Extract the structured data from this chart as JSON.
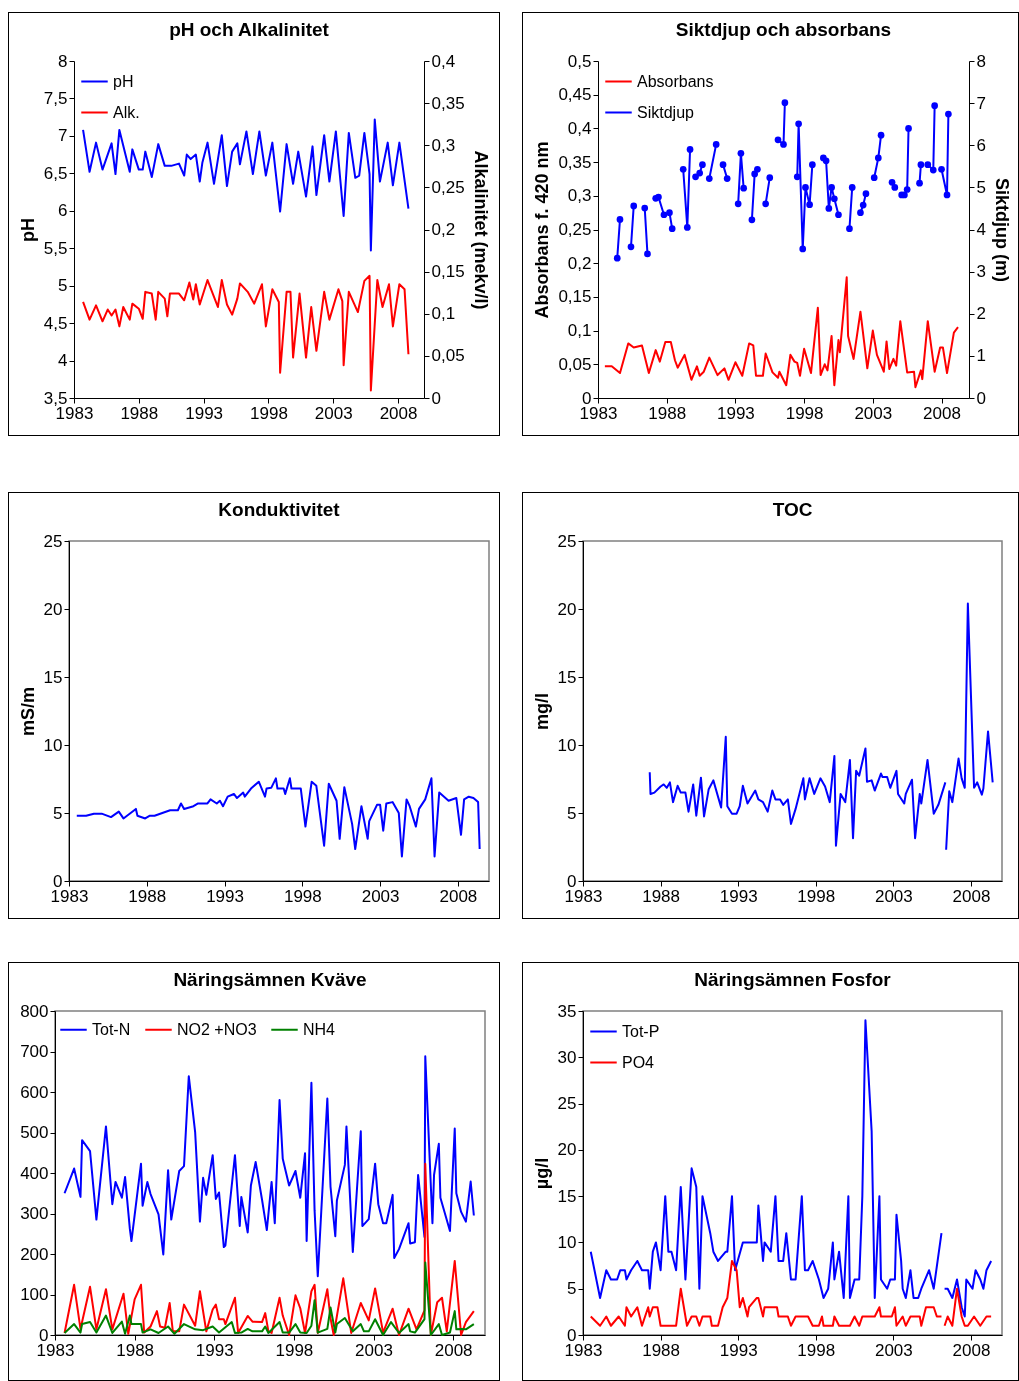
{
  "chart_data": [
    {
      "type": "line",
      "title": "pH och Alkalinitet",
      "ylabel": "pH",
      "y2label": "Alkalinitet (mekv/l)",
      "legend": "top left",
      "xlim": [
        1983,
        2010
      ],
      "xticks": [
        1983,
        1988,
        1993,
        1998,
        2003,
        2008
      ],
      "ylim": [
        3.5,
        8
      ],
      "yticks": [
        {
          "value": 3.5,
          "label": "3,5"
        },
        4,
        {
          "value": 4.5,
          "label": "4,5"
        },
        5,
        {
          "value": 5.5,
          "label": "5,5"
        },
        6,
        {
          "value": 6.5,
          "label": "6,5"
        },
        7,
        {
          "value": 7.5,
          "label": "7,5"
        },
        8
      ],
      "y2lim": [
        0,
        0.4
      ],
      "y2ticks": [
        0,
        {
          "value": 0.05,
          "label": "0,05"
        },
        {
          "value": 0.1,
          "label": "0,1"
        },
        {
          "value": 0.15,
          "label": "0,15"
        },
        {
          "value": 0.2,
          "label": "0,2"
        },
        {
          "value": 0.25,
          "label": "0,25"
        },
        {
          "value": 0.3,
          "label": "0,3"
        },
        {
          "value": 0.35,
          "label": "0,35"
        },
        {
          "value": 0.4,
          "label": "0,4"
        }
      ],
      "series": [
        {
          "name": "pH",
          "color": "#0000ff",
          "x": [
            1983.7,
            1984.2,
            1984.7,
            1985.2,
            1985.9,
            1986.2,
            1986.5,
            1987.3,
            1987.5,
            1988.0,
            1988.3,
            1988.5,
            1989.0,
            1989.5,
            1990.0,
            1990.5,
            1991.1,
            1991.5,
            1991.7,
            1992.0,
            1992.4,
            1992.7,
            1992.9,
            1993.3,
            1993.8,
            1994.4,
            1994.8,
            1995.2,
            1995.6,
            1995.8,
            1996.3,
            1996.8,
            1997.3,
            1997.8,
            1998.3,
            1998.9,
            1999.4,
            1999.9,
            2000.3,
            2000.9,
            2001.4,
            2001.7,
            2002.3,
            2002.7,
            2003.2,
            2003.8,
            2004.2,
            2004.7,
            2005.0,
            2005.4,
            2005.8,
            2005.9,
            2006.2,
            2006.6,
            2007.2,
            2007.6,
            2008.1,
            2008.8
          ],
          "values": [
            7.08,
            6.52,
            6.91,
            6.55,
            6.9,
            6.49,
            7.08,
            6.52,
            6.82,
            6.55,
            6.55,
            6.79,
            6.45,
            6.89,
            6.6,
            6.6,
            6.63,
            6.47,
            6.75,
            6.69,
            6.75,
            6.39,
            6.64,
            6.91,
            6.36,
            7.01,
            6.33,
            6.79,
            6.9,
            6.62,
            7.06,
            6.49,
            7.06,
            6.47,
            6.91,
            5.99,
            6.89,
            6.36,
            6.79,
            6.19,
            6.86,
            6.21,
            7.01,
            6.39,
            7.06,
            5.93,
            7.04,
            6.44,
            6.47,
            7.04,
            6.49,
            5.47,
            7.22,
            6.39,
            6.91,
            6.34,
            6.91,
            6.03
          ]
        },
        {
          "name": "Alk.",
          "color": "#ff0000",
          "axis": "y2",
          "x": [
            1983.7,
            1984.2,
            1984.7,
            1985.2,
            1985.6,
            1985.9,
            1986.2,
            1986.5,
            1986.8,
            1987.3,
            1987.5,
            1988.0,
            1988.3,
            1988.5,
            1989.0,
            1989.3,
            1989.5,
            1990.0,
            1990.2,
            1990.4,
            1991.1,
            1991.5,
            1991.9,
            1992.2,
            1992.4,
            1992.7,
            1993.3,
            1993.8,
            1994.1,
            1994.4,
            1994.8,
            1995.2,
            1995.6,
            1995.8,
            1996.4,
            1996.9,
            1997.5,
            1997.8,
            1998.3,
            1998.8,
            1998.9,
            1999.4,
            1999.7,
            1999.9,
            2000.4,
            2000.9,
            2001.3,
            2001.7,
            2002.3,
            2002.7,
            2003.4,
            2003.7,
            2003.8,
            2004.2,
            2004.9,
            2005.4,
            2005.8,
            2005.9,
            2006.4,
            2006.8,
            2007.3,
            2007.6,
            2008.1,
            2008.5,
            2008.8
          ],
          "values": [
            0.114,
            0.093,
            0.11,
            0.091,
            0.105,
            0.098,
            0.105,
            0.085,
            0.108,
            0.093,
            0.112,
            0.106,
            0.094,
            0.126,
            0.124,
            0.093,
            0.126,
            0.118,
            0.097,
            0.124,
            0.124,
            0.116,
            0.137,
            0.117,
            0.135,
            0.111,
            0.14,
            0.12,
            0.108,
            0.14,
            0.111,
            0.099,
            0.118,
            0.136,
            0.126,
            0.112,
            0.135,
            0.085,
            0.129,
            0.114,
            0.03,
            0.126,
            0.126,
            0.048,
            0.124,
            0.048,
            0.108,
            0.056,
            0.126,
            0.093,
            0.129,
            0.115,
            0.039,
            0.126,
            0.102,
            0.139,
            0.145,
            0.009,
            0.14,
            0.108,
            0.135,
            0.085,
            0.135,
            0.129,
            0.052
          ]
        }
      ]
    },
    {
      "type": "line",
      "title": "Siktdjup och absorbans",
      "ylabel": "Absorbans f. 420 nm",
      "y2label": "Siktdjup (m)",
      "legend": "top left",
      "xlim": [
        1983,
        2010
      ],
      "xticks": [
        1983,
        1988,
        1993,
        1998,
        2003,
        2008
      ],
      "ylim": [
        0,
        0.5
      ],
      "yticks": [
        0,
        {
          "value": 0.05,
          "label": "0,05"
        },
        {
          "value": 0.1,
          "label": "0,1"
        },
        {
          "value": 0.15,
          "label": "0,15"
        },
        {
          "value": 0.2,
          "label": "0,2"
        },
        {
          "value": 0.25,
          "label": "0,25"
        },
        {
          "value": 0.3,
          "label": "0,3"
        },
        {
          "value": 0.35,
          "label": "0,35"
        },
        {
          "value": 0.4,
          "label": "0,4"
        },
        {
          "value": 0.45,
          "label": "0,45"
        },
        {
          "value": 0.5,
          "label": "0,5"
        }
      ],
      "y2lim": [
        0,
        8
      ],
      "y2ticks": [
        0,
        1,
        2,
        3,
        4,
        5,
        6,
        7,
        8
      ],
      "series": [
        {
          "name": "Absorbans",
          "color": "#ff0000",
          "x": [
            1983.5,
            1984.0,
            1984.6,
            1985.2,
            1985.6,
            1986.2,
            1986.7,
            1987.2,
            1987.5,
            1987.9,
            1988.3,
            1988.6,
            1988.8,
            1989.3,
            1989.8,
            1990.2,
            1990.4,
            1990.7,
            1991.1,
            1991.7,
            1992.2,
            1992.5,
            1993.0,
            1993.5,
            1994.0,
            1994.3,
            1994.5,
            1995.0,
            1995.2,
            1995.7,
            1996.1,
            1996.2,
            1996.7,
            1997.0,
            1997.3,
            1997.5,
            1997.7,
            1998.0,
            1998.5,
            1999.0,
            1999.2,
            1999.5,
            1999.7,
            2000.0,
            2000.2,
            2000.5,
            2000.6,
            2001.1,
            2001.2,
            2001.6,
            2002.1,
            2002.6,
            2003.0,
            2003.3,
            2003.8,
            2004.0,
            2004.2,
            2004.5,
            2004.7,
            2005.0,
            2005.5,
            2006.0,
            2006.1,
            2006.5,
            2006.6,
            2007.0,
            2007.5,
            2007.9,
            2008.1,
            2008.4,
            2008.9,
            2009.2
          ],
          "values": [
            0.047,
            0.047,
            0.037,
            0.081,
            0.075,
            0.078,
            0.037,
            0.071,
            0.054,
            0.083,
            0.083,
            0.056,
            0.045,
            0.064,
            0.027,
            0.047,
            0.033,
            0.039,
            0.06,
            0.034,
            0.044,
            0.027,
            0.053,
            0.033,
            0.081,
            0.078,
            0.033,
            0.033,
            0.066,
            0.038,
            0.03,
            0.039,
            0.019,
            0.064,
            0.054,
            0.052,
            0.033,
            0.073,
            0.037,
            0.134,
            0.034,
            0.05,
            0.041,
            0.092,
            0.019,
            0.086,
            0.068,
            0.179,
            0.092,
            0.058,
            0.128,
            0.044,
            0.1,
            0.064,
            0.039,
            0.084,
            0.043,
            0.058,
            0.048,
            0.114,
            0.038,
            0.039,
            0.016,
            0.041,
            0.028,
            0.114,
            0.039,
            0.075,
            0.075,
            0.037,
            0.097,
            0.105
          ]
        },
        {
          "name": "Siktdjup",
          "color": "#0000ff",
          "axis": "y2",
          "marker": "circle",
          "x": [
            1984.4,
            1984.6,
            1985.0,
            1985.4,
            1985.6,
            1986.0,
            1986.4,
            1986.6,
            1986.9,
            1987.2,
            1987.4,
            1987.8,
            1988.0,
            1988.2,
            1988.4,
            1988.8,
            1989.2,
            1989.5,
            1989.7,
            1989.9,
            1990.1,
            1990.4,
            1990.6,
            1990.9,
            1991.1,
            1991.6,
            1991.9,
            1992.1,
            1992.4,
            1992.8,
            1993.2,
            1993.4,
            1993.6,
            1993.9,
            1994.2,
            1994.4,
            1994.6,
            1994.9,
            1995.2,
            1995.5,
            1995.8,
            1996.1,
            1996.5,
            1996.6,
            1997.0,
            1997.5,
            1997.6,
            1997.9,
            1998.1,
            1998.4,
            1998.6,
            1999.0,
            1999.4,
            1999.6,
            1999.8,
            2000.0,
            2000.2,
            2000.5,
            2000.9,
            2001.3,
            2001.5,
            2001.8,
            2002.1,
            2002.3,
            2002.5,
            2002.8,
            2003.1,
            2003.4,
            2003.6,
            2004.0,
            2004.4,
            2004.6,
            2004.9,
            2005.1,
            2005.3,
            2005.5,
            2005.6,
            2006.0,
            2006.4,
            2006.5,
            2006.8,
            2007.0,
            2007.4,
            2007.5,
            2007.8,
            2008.0,
            2008.4,
            2008.5
          ],
          "values": [
            3.32,
            4.24,
            null,
            3.59,
            4.56,
            null,
            4.51,
            3.42,
            null,
            4.74,
            4.77,
            4.35,
            null,
            4.4,
            4.02,
            null,
            5.43,
            4.05,
            5.9,
            null,
            5.25,
            5.34,
            5.54,
            null,
            5.21,
            6.02,
            null,
            5.54,
            5.21,
            null,
            4.61,
            5.81,
            4.98,
            null,
            4.23,
            5.32,
            5.43,
            null,
            4.61,
            5.23,
            null,
            6.13,
            6.02,
            7.01,
            null,
            5.25,
            6.51,
            3.54,
            5.0,
            4.59,
            5.54,
            null,
            5.7,
            5.63,
            4.5,
            5.0,
            4.73,
            4.35,
            null,
            4.02,
            5.0,
            null,
            4.4,
            4.58,
            4.85,
            null,
            5.23,
            5.7,
            6.24,
            null,
            5.12,
            5.0,
            null,
            4.82,
            4.82,
            4.95,
            6.4,
            null,
            5.1,
            5.54,
            null,
            5.54,
            5.41,
            6.94,
            null,
            5.43,
            4.82,
            6.74
          ]
        }
      ]
    },
    {
      "type": "line",
      "title": "Konduktivitet",
      "ylabel": "mS/m",
      "color": "#0000ff",
      "xlim": [
        1983,
        2010
      ],
      "xticks": [
        1983,
        1988,
        1993,
        1998,
        2003,
        2008
      ],
      "ylim": [
        0,
        25
      ],
      "yticks": [
        0,
        5,
        10,
        15,
        20,
        25
      ],
      "x": [
        1983.5,
        1984.1,
        1984.6,
        1985.1,
        1985.7,
        1986.2,
        1986.5,
        1987.3,
        1987.4,
        1987.9,
        1988.2,
        1988.5,
        1989.0,
        1989.5,
        1990.0,
        1990.2,
        1990.4,
        1991.0,
        1991.3,
        1991.9,
        1992.1,
        1992.5,
        1992.7,
        1992.9,
        1993.2,
        1993.6,
        1993.8,
        1994.2,
        1994.3,
        1994.7,
        1995.2,
        1995.6,
        1995.7,
        1996.0,
        1996.3,
        1996.4,
        1996.8,
        1996.9,
        1997.2,
        1997.3,
        1997.9,
        1998.2,
        1998.6,
        1998.9,
        1999.4,
        1999.7,
        2000.2,
        2000.4,
        2000.7,
        2001.2,
        2001.4,
        2001.8,
        2002.2,
        2002.3,
        2002.8,
        2003.0,
        2003.2,
        2003.4,
        2003.8,
        2004.2,
        2004.4,
        2004.7,
        2004.9,
        2005.3,
        2005.5,
        2005.9,
        2006.3,
        2006.5,
        2006.8,
        2007.4,
        2007.9,
        2008.2,
        2008.4,
        2008.7,
        2009.0,
        2009.3,
        2009.4
      ],
      "values": [
        4.8,
        4.8,
        4.95,
        4.95,
        4.7,
        5.1,
        4.6,
        5.3,
        4.8,
        4.6,
        4.8,
        4.8,
        5.0,
        5.2,
        5.2,
        5.7,
        5.3,
        5.5,
        5.7,
        5.7,
        6.0,
        5.7,
        5.9,
        5.5,
        6.2,
        6.4,
        6.1,
        6.5,
        6.2,
        6.8,
        7.3,
        6.2,
        6.8,
        6.85,
        7.55,
        6.8,
        6.8,
        6.4,
        7.55,
        6.8,
        6.8,
        4.0,
        7.3,
        7.0,
        2.6,
        7.15,
        5.9,
        3.1,
        6.9,
        4.2,
        2.35,
        5.5,
        3.1,
        4.4,
        5.6,
        5.6,
        3.7,
        5.7,
        5.8,
        5.0,
        1.8,
        6.0,
        5.5,
        4.0,
        5.3,
        6.0,
        7.55,
        1.8,
        6.5,
        5.9,
        6.1,
        3.4,
        6.0,
        6.2,
        6.1,
        5.8,
        2.35
      ]
    },
    {
      "type": "line",
      "title": "TOC",
      "ylabel": "mg/l",
      "color": "#0000ff",
      "xlim": [
        1983,
        2010
      ],
      "xticks": [
        1983,
        1988,
        1993,
        1998,
        2003,
        2008
      ],
      "ylim": [
        0,
        25
      ],
      "yticks": [
        0,
        5,
        10,
        15,
        20,
        25
      ],
      "x": [
        1987.3,
        1987.35,
        1987.6,
        1988.0,
        1988.2,
        1988.4,
        1988.6,
        1988.8,
        1989.1,
        1989.3,
        1989.6,
        1989.8,
        1990.1,
        1990.3,
        1990.6,
        1990.8,
        1991.1,
        1991.4,
        1991.9,
        1992.2,
        1992.3,
        1992.6,
        1992.9,
        1993.1,
        1993.3,
        1993.6,
        1994.1,
        1994.3,
        1994.6,
        1994.9,
        1995.2,
        1995.4,
        1995.7,
        1995.9,
        1996.2,
        1996.4,
        1996.7,
        1997.2,
        1997.3,
        1997.6,
        1997.9,
        1998.3,
        1998.6,
        1998.9,
        1999.2,
        1999.3,
        1999.6,
        1999.9,
        2000.2,
        2000.4,
        2000.6,
        2000.8,
        2001.2,
        2001.3,
        2001.6,
        2001.8,
        2002.2,
        2002.3,
        2002.6,
        2002.8,
        2003.2,
        2003.3,
        2003.7,
        2003.8,
        2004.2,
        2004.4,
        2004.7,
        2004.8,
        2005.2,
        2005.6,
        2005.9,
        2006.35,
        2006.37,
        2006.4,
        2006.6,
        2006.8,
        2007.2,
        2007.4,
        2007.6,
        2007.8,
        2008.2,
        2008.4,
        2008.7,
        2008.8,
        2009.1,
        2009.4
      ],
      "values": [
        8.0,
        6.4,
        6.5,
        6.95,
        7.1,
        6.85,
        7.25,
        5.8,
        7.0,
        6.5,
        6.5,
        5.1,
        7.1,
        4.8,
        7.6,
        4.75,
        6.75,
        7.4,
        5.4,
        10.6,
        5.5,
        4.95,
        4.95,
        5.5,
        7.0,
        5.7,
        6.65,
        6.0,
        5.8,
        5.1,
        6.65,
        6.0,
        6.0,
        5.6,
        6.0,
        4.2,
        5.3,
        7.55,
        6.0,
        7.55,
        6.4,
        7.55,
        6.95,
        5.8,
        9.2,
        2.6,
        6.4,
        5.8,
        8.9,
        3.15,
        8.1,
        7.75,
        9.75,
        7.3,
        7.4,
        6.65,
        7.9,
        7.65,
        7.65,
        6.85,
        8.1,
        6.4,
        5.7,
        6.4,
        7.45,
        3.15,
        6.4,
        5.7,
        8.9,
        4.95,
        5.6,
        7.25,
        null,
        2.3,
        6.6,
        5.8,
        9.0,
        7.55,
        6.85,
        20.4,
        6.85,
        7.25,
        6.35,
        6.8,
        11.0,
        7.25
      ]
    },
    {
      "type": "line",
      "title": "Näringsämnen Kväve",
      "legend": "top",
      "xlim": [
        1983,
        2010
      ],
      "xticks": [
        1983,
        1988,
        1993,
        1998,
        2003,
        2008
      ],
      "ylim": [
        0,
        800
      ],
      "yticks": [
        0,
        100,
        200,
        300,
        400,
        500,
        600,
        700,
        800
      ],
      "series": [
        {
          "name": "Tot-N",
          "color": "#0000ff",
          "x": [
            1983.6,
            1984.2,
            1984.6,
            1984.7,
            1985.2,
            1985.6,
            1986.2,
            1986.6,
            1986.8,
            1987.2,
            1987.4,
            1987.7,
            1987.8,
            1988.4,
            1988.5,
            1988.8,
            1989.0,
            1989.5,
            1989.8,
            1990.1,
            1990.3,
            1990.8,
            1991.1,
            1991.4,
            1991.8,
            1992.1,
            1992.3,
            1992.5,
            1992.9,
            1993.1,
            1993.3,
            1993.6,
            1993.7,
            1994.3,
            1994.6,
            1994.7,
            1995.1,
            1995.3,
            1995.6,
            1996.0,
            1996.3,
            1996.6,
            1996.8,
            1997.1,
            1997.3,
            1997.7,
            1998.1,
            1998.4,
            1998.7,
            1998.8,
            1999.1,
            1999.3,
            1999.5,
            2000.1,
            2000.3,
            2000.6,
            2000.7,
            2001.2,
            2001.3,
            2001.7,
            2002.2,
            2002.3,
            2002.7,
            2003.1,
            2003.3,
            2003.6,
            2003.8,
            2004.2,
            2004.3,
            2004.6,
            2005.2,
            2005.3,
            2005.6,
            2005.8,
            2006.2,
            2006.25,
            2006.7,
            2006.8,
            2007.1,
            2007.2,
            2007.8,
            2008.1,
            2008.2,
            2008.5,
            2008.8,
            2009.1,
            2009.3
          ],
          "values": [
            350,
            411,
            341,
            481,
            454,
            285,
            515,
            323,
            378,
            339,
            390,
            262,
            232,
            423,
            319,
            378,
            348,
            298,
            199,
            407,
            285,
            405,
            417,
            639,
            501,
            280,
            388,
            346,
            444,
            336,
            352,
            217,
            221,
            444,
            269,
            341,
            253,
            369,
            427,
            334,
            259,
            378,
            276,
            580,
            435,
            369,
            405,
            339,
            449,
            232,
            623,
            307,
            145,
            584,
            366,
            244,
            332,
            420,
            515,
            205,
            503,
            269,
            286,
            423,
            323,
            276,
            276,
            346,
            190,
            212,
            276,
            226,
            229,
            395,
            242,
            688,
            276,
            395,
            472,
            339,
            257,
            510,
            350,
            304,
            280,
            379,
            295
          ]
        },
        {
          "name": "NO2 +NO3",
          "color": "#ff0000",
          "x": [
            1983.6,
            1984.2,
            1984.6,
            1985.2,
            1985.6,
            1986.2,
            1986.6,
            1987.3,
            1987.6,
            1988.0,
            1988.4,
            1988.6,
            1989.0,
            1989.4,
            1989.6,
            1989.9,
            1990.2,
            1990.4,
            1990.8,
            1991.1,
            1991.8,
            1992.1,
            1992.5,
            1992.9,
            1993.1,
            1993.3,
            1993.6,
            1993.7,
            1994.3,
            1994.5,
            1995.1,
            1995.4,
            1996.0,
            1996.2,
            1996.4,
            1996.6,
            1997.1,
            1997.3,
            1997.7,
            1998.1,
            1998.4,
            1998.7,
            1999.1,
            1999.3,
            1999.5,
            2000.1,
            2000.3,
            2000.5,
            2001.1,
            2001.6,
            2002.2,
            2002.7,
            2003.1,
            2003.6,
            2004.2,
            2004.6,
            2005.2,
            2005.7,
            2006.2,
            2006.25,
            2006.6,
            2007.0,
            2007.3,
            2007.6,
            2008.1,
            2008.5,
            2008.8,
            2009.3
          ],
          "values": [
            5,
            124,
            15,
            119,
            14,
            113,
            14,
            102,
            3,
            88,
            124,
            6,
            21,
            59,
            21,
            18,
            79,
            9,
            9,
            75,
            23,
            108,
            9,
            63,
            75,
            39,
            39,
            27,
            92,
            5,
            47,
            33,
            32,
            54,
            9,
            5,
            92,
            48,
            0,
            98,
            66,
            5,
            108,
            124,
            5,
            113,
            41,
            0,
            140,
            5,
            79,
            36,
            115,
            6,
            65,
            0,
            65,
            14,
            61,
            423,
            0,
            81,
            92,
            9,
            183,
            0,
            32,
            59
          ]
        },
        {
          "name": "NH4",
          "color": "#008000",
          "x": [
            1983.6,
            1984.2,
            1984.6,
            1984.7,
            1985.2,
            1985.6,
            1986.2,
            1986.6,
            1987.2,
            1987.4,
            1987.7,
            1987.8,
            1988.4,
            1988.5,
            1989.0,
            1989.5,
            1990.1,
            1990.5,
            1991.1,
            1991.8,
            1992.3,
            1992.9,
            1993.3,
            1994.1,
            1994.3,
            1994.7,
            1995.1,
            1995.4,
            1996.0,
            1996.2,
            1996.4,
            1997.1,
            1997.3,
            1997.7,
            1998.1,
            1998.4,
            1998.8,
            1999.1,
            1999.3,
            1999.5,
            2000.1,
            2000.3,
            2000.6,
            2000.7,
            2001.2,
            2001.7,
            2002.2,
            2002.4,
            2002.7,
            2003.1,
            2003.6,
            2004.1,
            2004.6,
            2005.2,
            2005.3,
            2005.6,
            2006.2,
            2006.25,
            2006.6,
            2007.1,
            2007.3,
            2007.8,
            2008.1,
            2008.2,
            2008.5,
            2008.8,
            2009.3
          ],
          "values": [
            5,
            27,
            6,
            27,
            32,
            6,
            48,
            5,
            33,
            3,
            48,
            27,
            27,
            6,
            14,
            5,
            21,
            3,
            27,
            14,
            12,
            21,
            6,
            32,
            5,
            6,
            15,
            9,
            9,
            21,
            5,
            32,
            6,
            6,
            27,
            6,
            5,
            23,
            86,
            6,
            15,
            68,
            6,
            27,
            42,
            9,
            27,
            9,
            9,
            39,
            0,
            32,
            5,
            27,
            9,
            6,
            39,
            179,
            0,
            27,
            0,
            6,
            59,
            14,
            15,
            14,
            27
          ]
        }
      ]
    },
    {
      "type": "line",
      "title": "Näringsämnen Fosfor",
      "ylabel": "µg/l",
      "legend": "top left",
      "xlim": [
        1983,
        2010
      ],
      "xticks": [
        1983,
        1988,
        1993,
        1998,
        2003,
        2008
      ],
      "ylim": [
        0,
        35
      ],
      "yticks": [
        0,
        5,
        10,
        15,
        20,
        25,
        30,
        35
      ],
      "series": [
        {
          "name": "Tot-P",
          "color": "#0000ff",
          "x": [
            1983.5,
            1984.1,
            1984.5,
            1984.8,
            1985.2,
            1985.4,
            1985.7,
            1985.8,
            1986.1,
            1986.5,
            1986.8,
            1987.2,
            1987.3,
            1987.5,
            1987.7,
            1988.0,
            1988.3,
            1988.5,
            1988.7,
            1989.0,
            1989.3,
            1989.6,
            1990.0,
            1990.3,
            1990.5,
            1990.7,
            1991.2,
            1991.4,
            1991.7,
            1992.2,
            1992.3,
            1992.6,
            1992.8,
            1993.3,
            1994.2,
            1994.3,
            1994.6,
            1994.7,
            1995.1,
            1995.4,
            1995.6,
            1995.9,
            1996.1,
            1996.4,
            1996.7,
            1997.1,
            1997.3,
            1997.5,
            1997.8,
            1998.2,
            1998.5,
            1998.8,
            1999.1,
            1999.2,
            1999.5,
            1999.8,
            2000.1,
            2000.2,
            2000.5,
            2000.8,
            2001.0,
            2001.2,
            2001.6,
            2001.8,
            2002.1,
            2002.2,
            2002.6,
            2002.8,
            2003.1,
            2003.2,
            2003.5,
            2003.6,
            2003.8,
            2004.1,
            2004.3,
            2004.6,
            2004.8,
            2005.3,
            2005.6,
            2006.1,
            2006.2,
            2006.3,
            2006.5,
            2006.8,
            2007.1,
            2007.4,
            2007.6,
            2007.7,
            2008.1,
            2008.3,
            2008.6,
            2008.8,
            2009.0,
            2009.3
          ],
          "values": [
            9,
            4,
            7,
            6,
            6,
            7,
            7,
            6,
            7,
            8,
            7,
            7,
            5,
            9,
            10,
            7,
            15,
            9,
            9,
            7,
            16,
            6,
            18,
            16,
            5,
            15,
            11,
            9,
            8,
            9,
            9,
            15,
            7,
            10,
            10,
            14,
            8,
            10,
            9,
            15,
            8,
            8,
            11,
            6,
            6,
            15,
            7,
            7,
            8,
            6,
            4,
            5,
            10,
            6,
            9,
            4,
            15,
            4,
            6,
            6,
            15,
            34,
            22,
            4,
            15,
            6,
            5,
            6,
            6,
            13,
            8,
            5,
            4,
            7,
            4,
            4,
            5,
            7,
            5,
            11,
            null,
            5,
            5,
            4,
            6,
            3,
            2,
            6,
            5,
            7,
            6,
            5,
            7,
            8
          ]
        },
        {
          "name": "PO4",
          "color": "#ff0000",
          "x": [
            1983.5,
            1984.1,
            1984.5,
            1984.8,
            1985.3,
            1985.7,
            1985.8,
            1986.1,
            1986.5,
            1986.8,
            1987.2,
            1987.3,
            1987.5,
            1987.8,
            1988.0,
            1989.0,
            1989.3,
            1989.7,
            1990.0,
            1990.3,
            1990.5,
            1990.7,
            1991.2,
            1991.3,
            1991.7,
            1992.0,
            1992.3,
            1992.6,
            1992.9,
            1993.1,
            1993.3,
            1993.6,
            1993.7,
            1994.2,
            1994.3,
            1994.6,
            1994.7,
            1995.5,
            1995.6,
            1996.2,
            1996.4,
            1996.7,
            1997.5,
            1997.8,
            1998.2,
            1998.4,
            1998.5,
            1999.1,
            1999.2,
            1999.5,
            2000.2,
            2000.5,
            2000.8,
            2001.0,
            2001.8,
            2002.1,
            2002.2,
            2002.9,
            2003.1,
            2003.2,
            2003.6,
            2003.8,
            2004.1,
            2004.7,
            2004.8,
            2005.1,
            2005.6,
            2005.8,
            2006.1,
            2006.2,
            2006.3,
            2006.5,
            2006.8,
            2007.1,
            2007.4,
            2007.6,
            2007.8,
            2008.2,
            2008.6,
            2009.0,
            2009.3
          ],
          "values": [
            2,
            1,
            2,
            1,
            2,
            1,
            3,
            2,
            3,
            1,
            3,
            2,
            3,
            3,
            1,
            1,
            5,
            1,
            2,
            2,
            1,
            2,
            2,
            1,
            1,
            3,
            4,
            8,
            7,
            3,
            4,
            2,
            3,
            4,
            4,
            2,
            3,
            3,
            2,
            2,
            1,
            2,
            2,
            1,
            1,
            2,
            1,
            1,
            2,
            1,
            1,
            2,
            1,
            2,
            2,
            3,
            2,
            2,
            3,
            1,
            2,
            1,
            2,
            2,
            1,
            3,
            3,
            2,
            2,
            null,
            1,
            2,
            1,
            5,
            2,
            1,
            1,
            2,
            1,
            2,
            2
          ]
        }
      ]
    }
  ]
}
